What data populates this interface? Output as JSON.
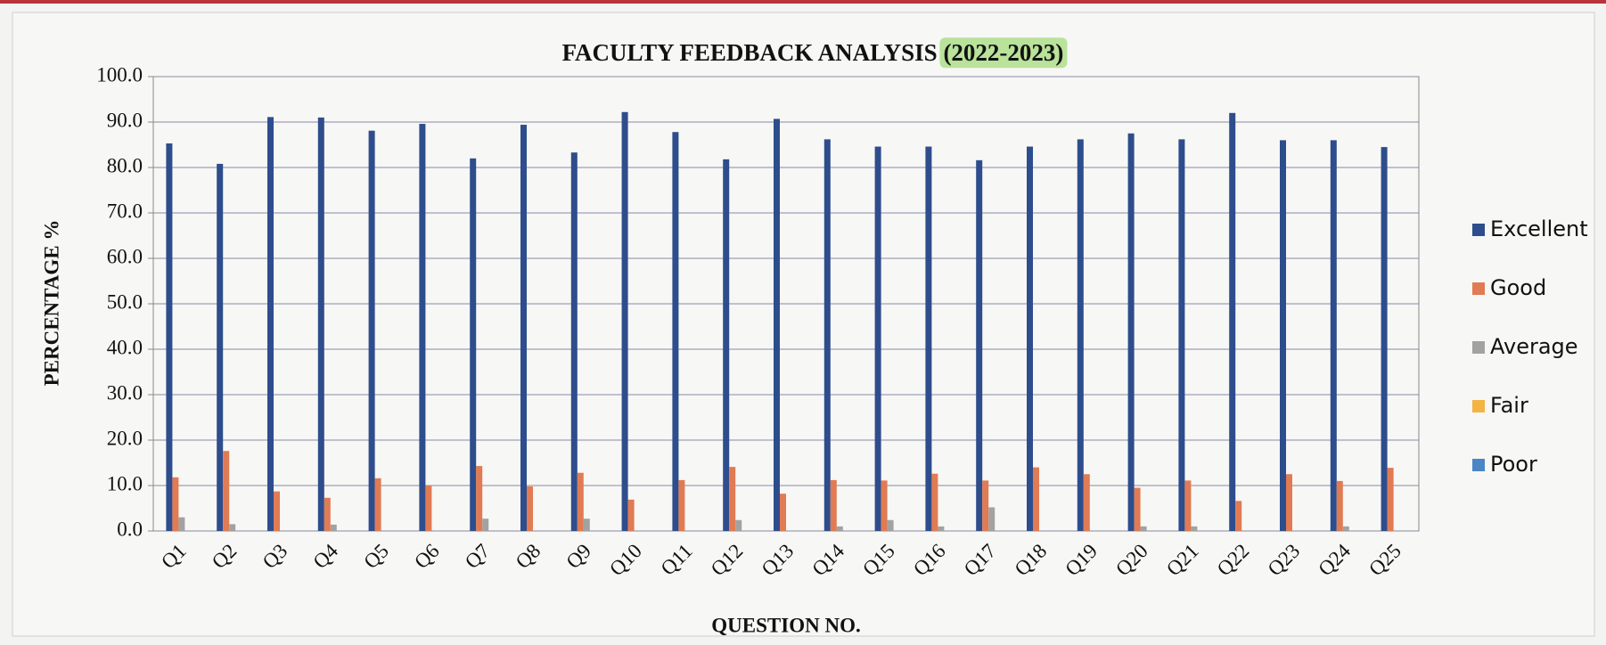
{
  "chart_data": {
    "type": "bar",
    "title": "FACULTY FEEDBACK ANALYSIS",
    "title_highlight": "(2022-2023)",
    "xlabel": "QUESTION NO.",
    "ylabel": "PERCENTAGE %",
    "categories": [
      "Q1",
      "Q2",
      "Q3",
      "Q4",
      "Q5",
      "Q6",
      "Q7",
      "Q8",
      "Q9",
      "Q10",
      "Q11",
      "Q12",
      "Q13",
      "Q14",
      "Q15",
      "Q16",
      "Q17",
      "Q18",
      "Q19",
      "Q20",
      "Q21",
      "Q22",
      "Q23",
      "Q24",
      "Q25"
    ],
    "series": [
      {
        "name": "Excellent",
        "color": "#2e4d8c",
        "values": [
          85.3,
          80.8,
          91.1,
          91.0,
          88.1,
          89.6,
          82.0,
          89.4,
          83.3,
          92.2,
          87.8,
          81.8,
          90.7,
          86.2,
          84.6,
          84.6,
          81.6,
          84.6,
          86.2,
          87.5,
          86.2,
          92.0,
          86.0,
          86.0,
          84.5
        ]
      },
      {
        "name": "Good",
        "color": "#e07b54",
        "values": [
          11.8,
          17.6,
          8.7,
          7.3,
          11.6,
          10.0,
          14.3,
          9.8,
          12.8,
          6.9,
          11.2,
          14.1,
          8.2,
          11.2,
          11.1,
          12.6,
          11.1,
          14.0,
          12.5,
          9.5,
          11.1,
          6.6,
          12.5,
          11.0,
          13.9
        ]
      },
      {
        "name": "Average",
        "color": "#a2a2a2",
        "values": [
          3.0,
          1.5,
          0,
          1.4,
          0,
          0,
          2.7,
          0,
          2.7,
          0,
          0,
          2.4,
          0,
          1.0,
          2.4,
          1.0,
          5.2,
          0,
          0,
          1.0,
          1.0,
          0,
          0,
          1.0,
          0
        ]
      },
      {
        "name": "Fair",
        "color": "#f3b444",
        "values": [
          0,
          0,
          0,
          0,
          0,
          0,
          0,
          0,
          0,
          0,
          0,
          0,
          0,
          0,
          0,
          0,
          0,
          0,
          0,
          0,
          0,
          0,
          0,
          0,
          0
        ]
      },
      {
        "name": "Poor",
        "color": "#4a86c5",
        "values": [
          0,
          0,
          0,
          0,
          0,
          0,
          0,
          0,
          0,
          0,
          0,
          0,
          0,
          0,
          0,
          0,
          0,
          0,
          0,
          0,
          0,
          0,
          0,
          0,
          0
        ]
      }
    ],
    "ylim": [
      0,
      100
    ],
    "yticks": [
      {
        "value": 0,
        "label": "0.0"
      },
      {
        "value": 10,
        "label": "10.0"
      },
      {
        "value": 20,
        "label": "20.0"
      },
      {
        "value": 30,
        "label": "30.0"
      },
      {
        "value": 40,
        "label": "40.0"
      },
      {
        "value": 50,
        "label": "50.0"
      },
      {
        "value": 60,
        "label": "60.0"
      },
      {
        "value": 70,
        "label": "70.0"
      },
      {
        "value": 80,
        "label": "80.0"
      },
      {
        "value": 90,
        "label": "90.0"
      },
      {
        "value": 100,
        "label": "100.0"
      }
    ],
    "grid": true,
    "legend": "right"
  }
}
